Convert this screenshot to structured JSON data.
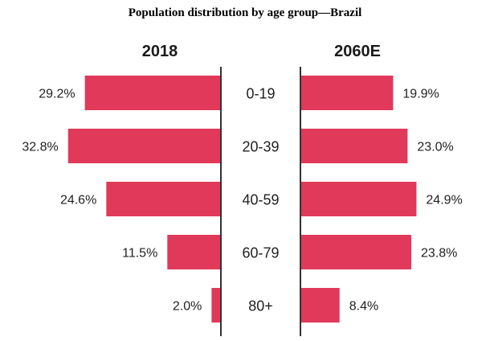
{
  "chart_data": {
    "type": "bar",
    "title": "Population distribution by age group—Brazil",
    "orientation": "horizontal-back-to-back",
    "categories": [
      "0-19",
      "20-39",
      "40-59",
      "60-79",
      "80+"
    ],
    "series": [
      {
        "name": "2018",
        "side": "left",
        "values": [
          29.2,
          32.8,
          24.6,
          11.5,
          2.0
        ],
        "labels": [
          "29.2%",
          "32.8%",
          "24.6%",
          "11.5%",
          "2.0%"
        ]
      },
      {
        "name": "2060E",
        "side": "right",
        "values": [
          19.9,
          23.0,
          24.9,
          23.8,
          8.4
        ],
        "labels": [
          "19.9%",
          "23.0%",
          "24.9%",
          "23.8%",
          "8.4%"
        ]
      }
    ],
    "unit": "%",
    "xlabel": "",
    "ylabel": "",
    "xlim": [
      0,
      35
    ],
    "grid": false,
    "legend": "none",
    "bar_color": "#e0395a",
    "axis_color": "#333333"
  }
}
